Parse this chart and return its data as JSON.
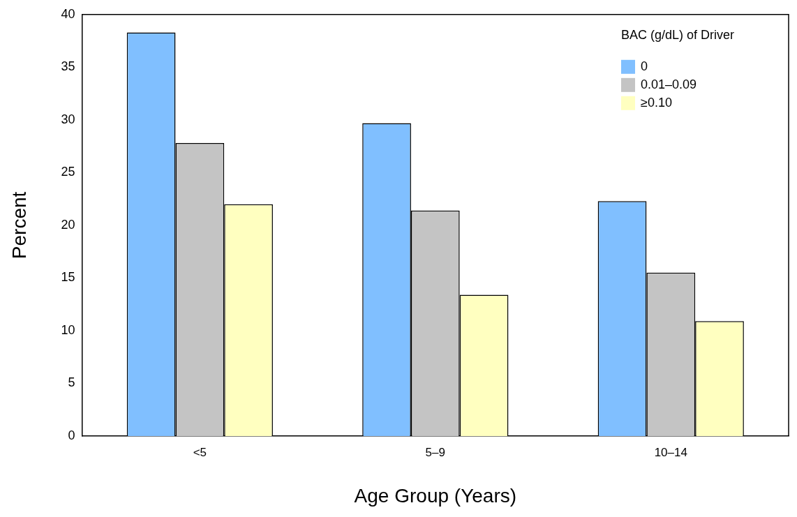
{
  "chart_data": {
    "type": "bar",
    "xlabel": "Age Group (Years)",
    "ylabel": "Percent",
    "legend_title": "BAC (g/dL) of Driver",
    "categories": [
      "<5",
      "5–9",
      "10–14"
    ],
    "series": [
      {
        "name": "0",
        "color": "#80bfff",
        "values": [
          38.3,
          29.7,
          22.3
        ]
      },
      {
        "name": "0.01–0.09",
        "color": "#c4c4c4",
        "values": [
          27.8,
          21.4,
          15.5
        ]
      },
      {
        "name": "≥0.10",
        "color": "#ffffc0",
        "values": [
          22.0,
          13.4,
          10.9
        ]
      }
    ],
    "ylim": [
      0,
      40
    ],
    "yticks": [
      0,
      5,
      10,
      15,
      20,
      25,
      30,
      35,
      40
    ],
    "grid": false,
    "legend": "top right"
  }
}
